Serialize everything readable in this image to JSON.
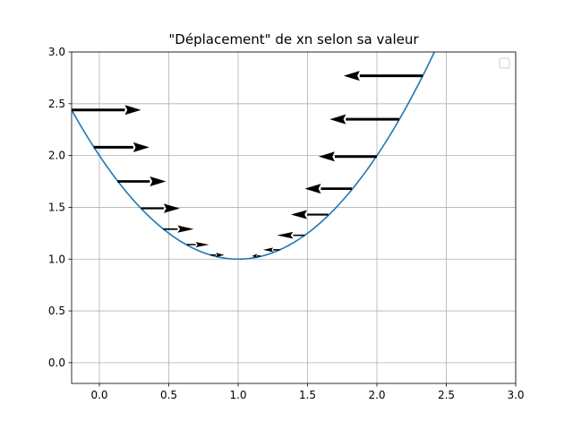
{
  "chart_data": {
    "type": "line",
    "title": "\"Déplacement\" de xn selon sa valeur",
    "xlabel": "",
    "ylabel": "",
    "xlim": [
      -0.2,
      3.0
    ],
    "ylim": [
      -0.2,
      3.0
    ],
    "grid": true,
    "legend": {
      "placement": "top-right",
      "entries": []
    },
    "x_ticks": [
      {
        "value": 0.0,
        "label": "0.0"
      },
      {
        "value": 0.5,
        "label": "0.5"
      },
      {
        "value": 1.0,
        "label": "1.0"
      },
      {
        "value": 1.5,
        "label": "1.5"
      },
      {
        "value": 2.0,
        "label": "2.0"
      },
      {
        "value": 2.5,
        "label": "2.5"
      },
      {
        "value": 3.0,
        "label": "3.0"
      }
    ],
    "y_ticks": [
      {
        "value": 0.0,
        "label": "0.0"
      },
      {
        "value": 0.5,
        "label": "0.5"
      },
      {
        "value": 1.0,
        "label": "1.0"
      },
      {
        "value": 1.5,
        "label": "1.5"
      },
      {
        "value": 2.0,
        "label": "2.0"
      },
      {
        "value": 2.5,
        "label": "2.5"
      },
      {
        "value": 3.0,
        "label": "3.0"
      }
    ],
    "curve": {
      "function": "y = (x - 1)^2 + 1",
      "x_range": [
        -0.2,
        2.42
      ],
      "color": "#1f77b4"
    },
    "arrows": {
      "color": "#000000",
      "vectors": [
        {
          "x": -0.2,
          "y": 2.44,
          "dx": 0.5
        },
        {
          "x": -0.04,
          "y": 2.08,
          "dx": 0.4
        },
        {
          "x": 0.13,
          "y": 1.75,
          "dx": 0.35
        },
        {
          "x": 0.3,
          "y": 1.49,
          "dx": 0.28
        },
        {
          "x": 0.46,
          "y": 1.29,
          "dx": 0.22
        },
        {
          "x": 0.63,
          "y": 1.14,
          "dx": 0.16
        },
        {
          "x": 0.8,
          "y": 1.04,
          "dx": 0.1
        },
        {
          "x": 1.16,
          "y": 1.03,
          "dx": -0.06
        },
        {
          "x": 1.3,
          "y": 1.09,
          "dx": -0.12
        },
        {
          "x": 1.48,
          "y": 1.23,
          "dx": -0.2
        },
        {
          "x": 1.65,
          "y": 1.43,
          "dx": -0.27
        },
        {
          "x": 1.82,
          "y": 1.68,
          "dx": -0.34
        },
        {
          "x": 2.0,
          "y": 1.99,
          "dx": -0.42
        },
        {
          "x": 2.16,
          "y": 2.35,
          "dx": -0.5
        },
        {
          "x": 2.33,
          "y": 2.77,
          "dx": -0.57
        }
      ]
    }
  }
}
